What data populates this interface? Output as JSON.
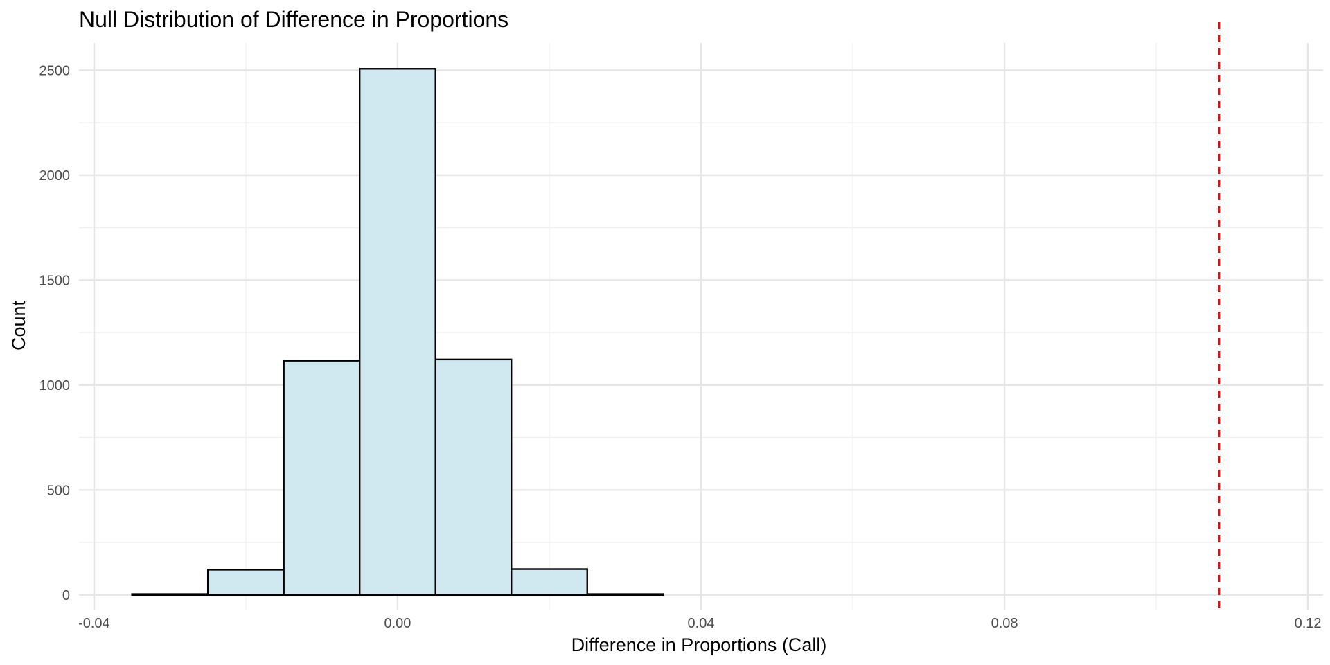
{
  "chart_data": {
    "type": "bar",
    "subtype": "histogram",
    "title": "Null Distribution of Difference in Proportions",
    "xlabel": "Difference in Proportions (Call)",
    "ylabel": "Count",
    "xlim": [
      -0.042,
      0.122
    ],
    "ylim": [
      -70,
      2630
    ],
    "x_ticks": [
      -0.04,
      0,
      0.04,
      0.08,
      0.12
    ],
    "x_tick_labels": [
      "-0.04",
      "0.00",
      "0.04",
      "0.08",
      "0.12"
    ],
    "y_ticks": [
      0,
      500,
      1000,
      1500,
      2000,
      2500
    ],
    "y_tick_labels": [
      "0",
      "500",
      "1000",
      "1500",
      "2000",
      "2500"
    ],
    "bin_width": 0.01,
    "bins": [
      {
        "x0": -0.035,
        "x1": -0.025,
        "count": 4
      },
      {
        "x0": -0.025,
        "x1": -0.015,
        "count": 120
      },
      {
        "x0": -0.015,
        "x1": -0.005,
        "count": 1116
      },
      {
        "x0": -0.005,
        "x1": 0.005,
        "count": 2507
      },
      {
        "x0": 0.005,
        "x1": 0.015,
        "count": 1122
      },
      {
        "x0": 0.015,
        "x1": 0.025,
        "count": 123
      },
      {
        "x0": 0.025,
        "x1": 0.035,
        "count": 4
      },
      {
        "x0": 0.035,
        "x1": 0.045,
        "count": 0
      },
      {
        "x0": 0.045,
        "x1": 0.055,
        "count": 0
      },
      {
        "x0": 0.055,
        "x1": 0.065,
        "count": 0
      },
      {
        "x0": 0.065,
        "x1": 0.075,
        "count": 0
      },
      {
        "x0": 0.075,
        "x1": 0.085,
        "count": 0
      },
      {
        "x0": 0.085,
        "x1": 0.095,
        "count": 0
      },
      {
        "x0": 0.095,
        "x1": 0.105,
        "count": 0
      },
      {
        "x0": 0.105,
        "x1": 0.115,
        "count": 0
      }
    ],
    "observed_statistic": 0.1083,
    "bar_fill": "#d0e8ef",
    "bar_outline": "#000000",
    "reference_line_color": "#ff0000",
    "reference_line_style": "dashed",
    "grid": true,
    "legend": "none"
  }
}
